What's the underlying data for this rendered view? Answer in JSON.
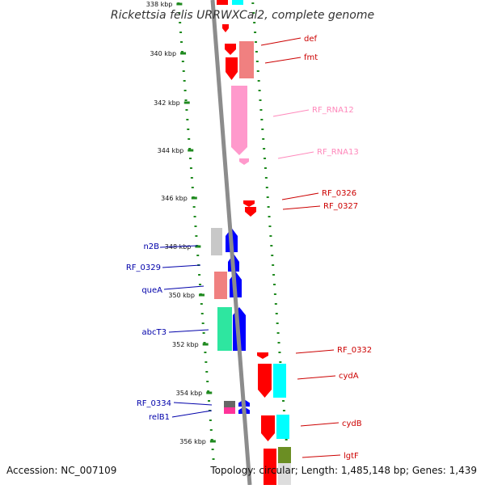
{
  "title": "Rickettsia felis URRWXCal2, complete genome",
  "accession": "Accession: NC_007109",
  "topology": "Topology: circular; Length: 1,485,148 bp; Genes: 1,439",
  "colors": {
    "backbone": "#8c8c8c",
    "dots": "#1f8a1f",
    "red": "#ff0000",
    "salmon": "#f08080",
    "pink": "#ff99cc",
    "blue": "#0000ff",
    "gray": "#c8c8c8",
    "green": "#2ee6a0",
    "cyan": "#00ffff",
    "olive": "#6b8e23",
    "label_red": "#cc0000",
    "label_pink": "#ff88bb",
    "label_blue": "#0000aa"
  },
  "ticks": [
    "338 kbp",
    "340 kbp",
    "342 kbp",
    "344 kbp",
    "346 kbp",
    "348 kbp",
    "350 kbp",
    "352 kbp",
    "354 kbp",
    "356 kbp"
  ],
  "labels": [
    {
      "text": "def",
      "color": "red"
    },
    {
      "text": "fmt",
      "color": "red"
    },
    {
      "text": "RF_RNA12",
      "color": "pink"
    },
    {
      "text": "RF_RNA13",
      "color": "pink"
    },
    {
      "text": "RF_0326",
      "color": "red"
    },
    {
      "text": "RF_0327",
      "color": "red"
    },
    {
      "text": "n2B",
      "color": "blue"
    },
    {
      "text": "RF_0329",
      "color": "blue"
    },
    {
      "text": "queA",
      "color": "blue"
    },
    {
      "text": "abcT3",
      "color": "blue"
    },
    {
      "text": "RF_0332",
      "color": "red"
    },
    {
      "text": "cydA",
      "color": "red"
    },
    {
      "text": "RF_0334",
      "color": "blue"
    },
    {
      "text": "relB1",
      "color": "blue"
    },
    {
      "text": "cydB",
      "color": "red"
    },
    {
      "text": "lgtF",
      "color": "red"
    }
  ]
}
